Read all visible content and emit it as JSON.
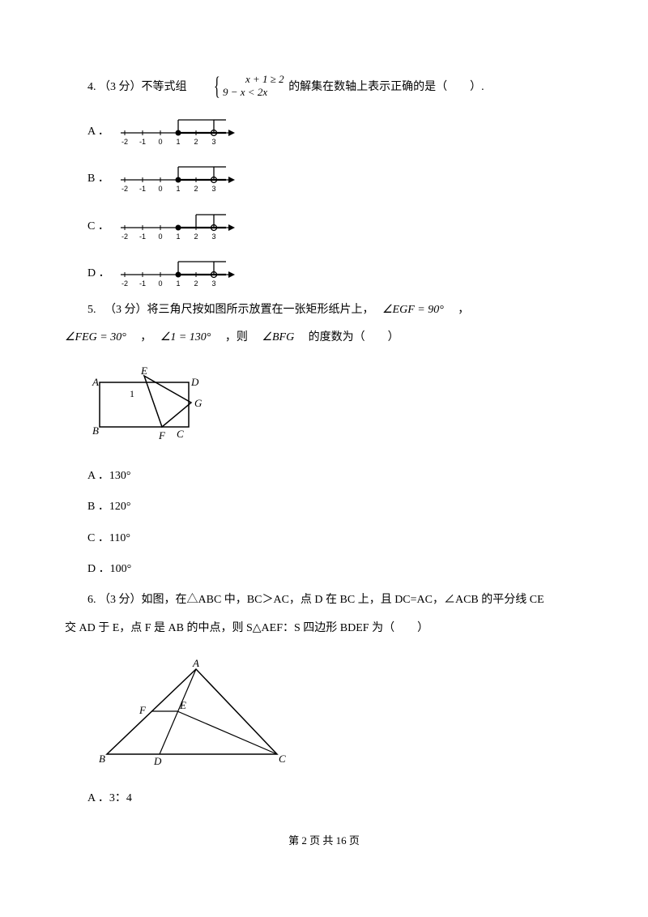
{
  "q4": {
    "prefix": "4. （3 分）不等式组",
    "system_line1": "x + 1 ≥ 2",
    "system_line2": "9 − x < 2x",
    "suffix": "的解集在数轴上表示正确的是（　　）.",
    "options": [
      {
        "label": "A ．",
        "ticks": [
          "-2",
          "-1",
          "0",
          "1",
          "2",
          "3"
        ],
        "closed_at": 1,
        "open_at": 3,
        "bracket_lo": 1,
        "bracket_hi": 3
      },
      {
        "label": "B ．",
        "ticks": [
          "-2",
          "-1",
          "0",
          "1",
          "2",
          "3"
        ],
        "closed_at": 1,
        "open_at": 3,
        "bracket_lo": 1,
        "bracket_hi": 3
      },
      {
        "label": "C ．",
        "ticks": [
          "-2",
          "-1",
          "0",
          "1",
          "2",
          "3"
        ],
        "closed_at": 1,
        "open_at": 3,
        "bracket_lo": 2,
        "bracket_hi": 3
      },
      {
        "label": "D ．",
        "ticks": [
          "-2",
          "-1",
          "0",
          "1",
          "2",
          "3"
        ],
        "closed_at": 1,
        "open_at": 3,
        "bracket_lo": 1,
        "bracket_hi": 3
      }
    ]
  },
  "q5": {
    "line1_a": "5. 　（3 分）将三角尺按如图所示放置在一张矩形纸片上，　",
    "line1_b": "∠EGF = 90°",
    "line1_c": "　，",
    "line2_a": "∠FEG = 30°",
    "line2_b": "　，　",
    "line2_c": "∠1 = 130°",
    "line2_d": "　，则　",
    "line2_e": "∠BFG",
    "line2_f": "　的度数为（　　）",
    "diagram": {
      "labels": {
        "A": "A",
        "B": "B",
        "C": "C",
        "D": "D",
        "E": "E",
        "F": "F",
        "G": "G",
        "one": "1"
      }
    },
    "options": [
      {
        "label": "A ．",
        "value": "130°"
      },
      {
        "label": "B ．",
        "value": "120°"
      },
      {
        "label": "C ．",
        "value": "110°"
      },
      {
        "label": "D ．",
        "value": "100°"
      }
    ]
  },
  "q6": {
    "line1": "6. （3 分）如图，在△ABC 中，BC＞AC，点 D 在 BC 上，且 DC=AC，∠ACB 的平分线 CE",
    "line2": "交 AD 于 E，点 F 是 AB 的中点，则 S△AEF：S 四边形 BDEF 为（　　）",
    "diagram": {
      "labels": {
        "A": "A",
        "B": "B",
        "C": "C",
        "D": "D",
        "E": "E",
        "F": "F"
      }
    },
    "options": [
      {
        "label": "A ．",
        "value": "3：4"
      }
    ]
  },
  "footer": "第 2 页 共 16 页",
  "style": {
    "stroke": "#000000",
    "fill_none": "none",
    "fill_black": "#000000",
    "fill_white": "#ffffff",
    "tick_fontsize": "9",
    "label_fontsize": "13"
  }
}
